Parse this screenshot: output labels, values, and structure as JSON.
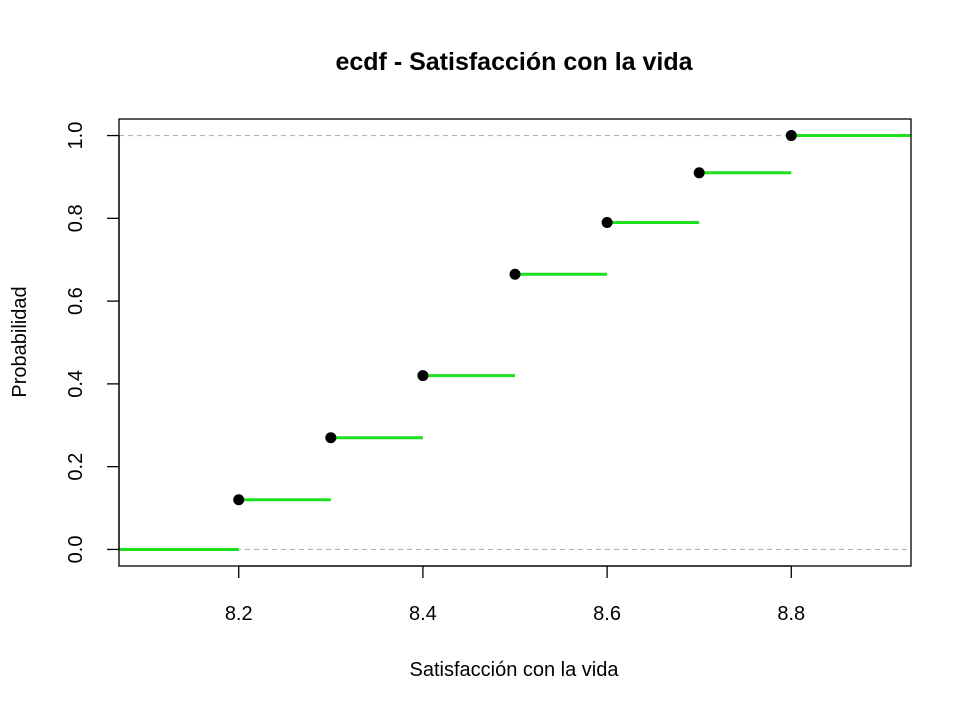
{
  "chart_data": {
    "type": "line",
    "subtype": "step",
    "title": "ecdf - Satisfacción con la vida",
    "xlabel": "Satisfacción con la vida",
    "ylabel": "Probabilidad",
    "xlim": [
      8.07,
      8.93
    ],
    "ylim": [
      -0.04,
      1.04
    ],
    "x_ticks": [
      "8.2",
      "8.4",
      "8.6",
      "8.8"
    ],
    "y_ticks": [
      "0.0",
      "0.2",
      "0.4",
      "0.6",
      "0.8",
      "1.0"
    ],
    "series": [
      {
        "x": [
          8.2,
          8.3,
          8.4,
          8.5,
          8.6,
          8.7,
          8.8
        ],
        "y": [
          0.12,
          0.27,
          0.42,
          0.665,
          0.79,
          0.91,
          1.0
        ]
      }
    ],
    "reference_lines": [
      0,
      1
    ],
    "line_color": "#1ee01e",
    "point_color": "#000000",
    "reference_color": "#b3b3b3"
  }
}
